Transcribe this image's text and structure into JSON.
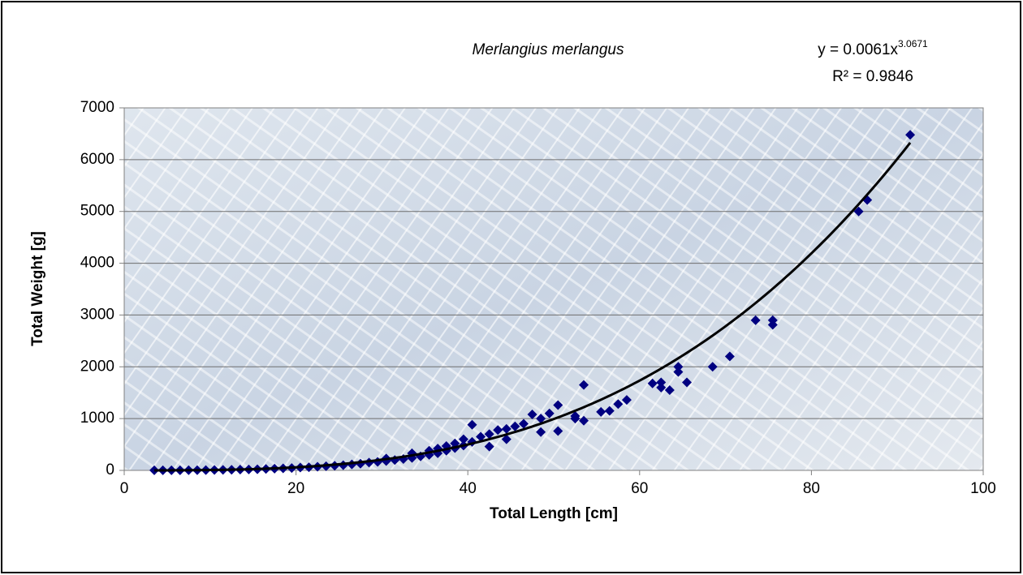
{
  "chart_data": {
    "type": "scatter",
    "title": "Merlangius merlangus",
    "x_label": "Total Length [cm]",
    "y_label": "Total Weight [g]",
    "xlim": [
      0,
      100
    ],
    "xticks": [
      0,
      20,
      40,
      60,
      80,
      100
    ],
    "ylim": [
      0,
      7000
    ],
    "yticks": [
      0,
      1000,
      2000,
      3000,
      4000,
      5000,
      6000,
      7000
    ],
    "grid": true,
    "color": "#000080",
    "trendline": {
      "type": "power",
      "coefficient": 0.0061,
      "exponent": 3.0671,
      "color": "#000000",
      "equation_label": "y = 0.0061x",
      "exponent_label": "3.0671",
      "r2_label": "R² = 0.9846"
    },
    "x": [
      91.5,
      86.5,
      85.5,
      75.5,
      75.5,
      73.5,
      70.5,
      68.5,
      65.5,
      64.5,
      64.5,
      63.5,
      62.5,
      62.5,
      61.5,
      58.5,
      57.5,
      56.5,
      55.5,
      53.5,
      53.5,
      52.5,
      52.5,
      50.5,
      50.5,
      49.5,
      48.5,
      48.5,
      47.5,
      46.5,
      45.5,
      44.5,
      44.5,
      43.5,
      42.5,
      42.5,
      41.5,
      40.5,
      40.5,
      39.5,
      39.5,
      38.5,
      38.5,
      37.5,
      37.5,
      36.5,
      36.5,
      35.5,
      35.5,
      34.5,
      33.5,
      33.5,
      32.5,
      31.5,
      30.5,
      30.5,
      29.5,
      28.5,
      27.5,
      26.5,
      25.5,
      24.5,
      23.5,
      22.5,
      21.5,
      20.5,
      19.5,
      18.5,
      17.5,
      16.5,
      15.5,
      14.5,
      13.5,
      12.5,
      11.5,
      10.5,
      9.5,
      8.5,
      7.5,
      6.5,
      5.5,
      4.5,
      3.5
    ],
    "y": [
      6480,
      5220,
      5000,
      2900,
      2810,
      2900,
      2200,
      2000,
      1700,
      2000,
      1900,
      1550,
      1700,
      1600,
      1680,
      1360,
      1280,
      1150,
      1130,
      1650,
      960,
      1000,
      1050,
      1260,
      760,
      1100,
      740,
      1000,
      1080,
      900,
      850,
      600,
      800,
      780,
      460,
      700,
      650,
      880,
      550,
      480,
      600,
      430,
      520,
      380,
      470,
      330,
      420,
      300,
      380,
      270,
      240,
      330,
      220,
      200,
      180,
      230,
      165,
      150,
      130,
      115,
      100,
      90,
      80,
      70,
      60,
      55,
      45,
      40,
      33,
      28,
      22,
      18,
      15,
      12,
      9,
      7,
      5,
      4,
      3,
      2,
      1,
      1,
      1
    ]
  }
}
